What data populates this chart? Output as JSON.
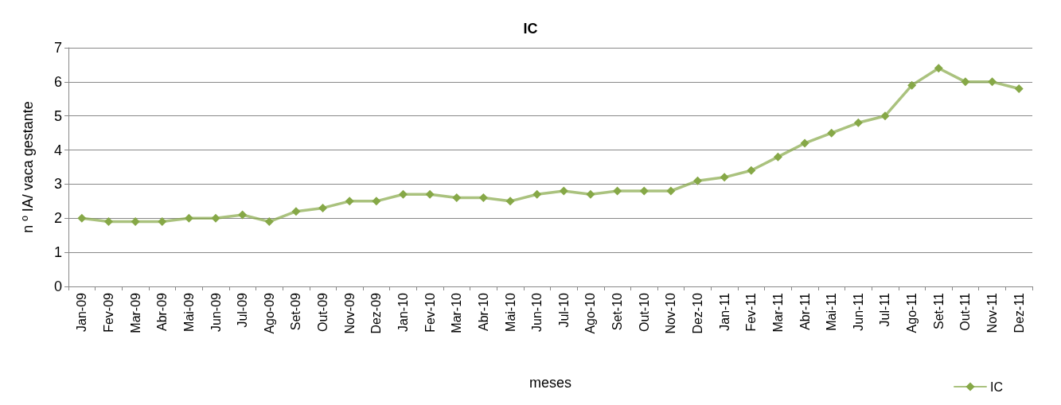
{
  "chart_data": {
    "type": "line",
    "title": "IC",
    "xlabel": "meses",
    "ylabel": "n º IA/ vaca gestante",
    "categories": [
      "Jan-09",
      "Fev-09",
      "Mar-09",
      "Abr-09",
      "Mai-09",
      "Jun-09",
      "Jul-09",
      "Ago-09",
      "Set-09",
      "Out-09",
      "Nov-09",
      "Dez-09",
      "Jan-10",
      "Fev-10",
      "Mar-10",
      "Abr-10",
      "Mai-10",
      "Jun-10",
      "Jul-10",
      "Ago-10",
      "Set-10",
      "Out-10",
      "Nov-10",
      "Dez-10",
      "Jan-11",
      "Fev-11",
      "Mar-11",
      "Abr-11",
      "Mai-11",
      "Jun-11",
      "Jul-11",
      "Ago-11",
      "Set-11",
      "Out-11",
      "Nov-11",
      "Dez-11"
    ],
    "series": [
      {
        "name": "IC",
        "color": "#86a847",
        "values": [
          2.0,
          1.9,
          1.9,
          1.9,
          2.0,
          2.0,
          2.1,
          1.9,
          2.2,
          2.3,
          2.5,
          2.5,
          2.7,
          2.7,
          2.6,
          2.6,
          2.5,
          2.7,
          2.8,
          2.7,
          2.8,
          2.8,
          2.8,
          3.1,
          3.2,
          3.4,
          3.8,
          4.2,
          4.5,
          4.8,
          5.0,
          5.9,
          6.4,
          6.0,
          6.0,
          5.8
        ]
      }
    ],
    "ylim": [
      0,
      7
    ],
    "yticks": [
      0,
      1,
      2,
      3,
      4,
      5,
      6,
      7
    ],
    "grid": "y",
    "legend": "bottom right",
    "marker": "diamond",
    "line_style": "solid"
  }
}
